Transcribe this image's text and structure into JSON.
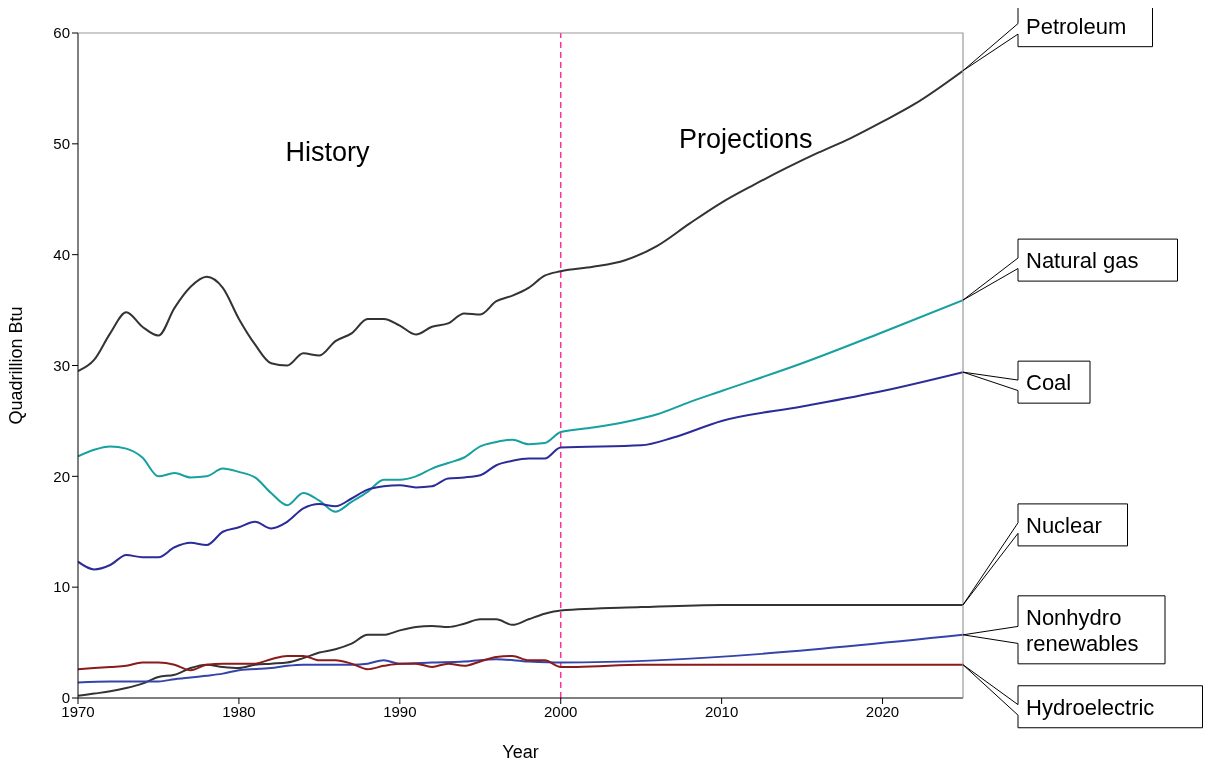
{
  "chart_data": {
    "type": "line",
    "xlabel": "Year",
    "ylabel": "Quadrillion Btu",
    "xlim": [
      1970,
      2025
    ],
    "xticks": [
      1970,
      1980,
      1990,
      2000,
      2010,
      2020
    ],
    "ylim": [
      0,
      60
    ],
    "yticks": [
      0,
      10,
      20,
      30,
      40,
      50,
      60
    ],
    "grid": false,
    "legend": false,
    "marker": "none",
    "line_style": "solid",
    "annotations": [
      "History",
      "Projections"
    ],
    "ref_lines": [
      {
        "axis": "x",
        "value": 2000,
        "color": "#ff3399",
        "line_style": "dashed"
      }
    ],
    "series": [
      {
        "name": "Petroleum",
        "color": "#333333",
        "x": [
          1970,
          1971,
          1972,
          1973,
          1974,
          1975,
          1976,
          1977,
          1978,
          1979,
          1980,
          1981,
          1982,
          1983,
          1984,
          1985,
          1986,
          1987,
          1988,
          1989,
          1990,
          1991,
          1992,
          1993,
          1994,
          1995,
          1996,
          1997,
          1998,
          1999,
          2000,
          2002,
          2004,
          2006,
          2008,
          2010,
          2012,
          2014,
          2016,
          2018,
          2020,
          2022,
          2025
        ],
        "values": [
          29.5,
          30.5,
          32.9,
          34.8,
          33.5,
          32.7,
          35.2,
          37.1,
          38.0,
          37.0,
          34.2,
          31.9,
          30.2,
          30.0,
          31.1,
          30.9,
          32.2,
          32.9,
          34.2,
          34.2,
          33.6,
          32.8,
          33.5,
          33.8,
          34.7,
          34.6,
          35.8,
          36.3,
          37.0,
          38.1,
          38.5,
          38.9,
          39.5,
          40.8,
          42.8,
          44.7,
          46.3,
          47.8,
          49.2,
          50.5,
          52.0,
          53.6,
          56.6
        ]
      },
      {
        "name": "Natural gas",
        "color": "#16a0a0",
        "x": [
          1970,
          1971,
          1972,
          1973,
          1974,
          1975,
          1976,
          1977,
          1978,
          1979,
          1980,
          1981,
          1982,
          1983,
          1984,
          1985,
          1986,
          1987,
          1988,
          1989,
          1990,
          1991,
          1992,
          1993,
          1994,
          1995,
          1996,
          1997,
          1998,
          1999,
          2000,
          2002,
          2004,
          2006,
          2008,
          2010,
          2015,
          2020,
          2025
        ],
        "values": [
          21.8,
          22.4,
          22.7,
          22.5,
          21.7,
          20.0,
          20.3,
          19.9,
          20.0,
          20.7,
          20.4,
          19.9,
          18.5,
          17.4,
          18.5,
          17.8,
          16.8,
          17.7,
          18.6,
          19.7,
          19.7,
          20.0,
          20.7,
          21.2,
          21.7,
          22.7,
          23.1,
          23.3,
          22.9,
          23.0,
          24.0,
          24.4,
          24.9,
          25.6,
          26.7,
          27.7,
          30.2,
          33.0,
          35.9
        ]
      },
      {
        "name": "Coal",
        "color": "#2b2b99",
        "x": [
          1970,
          1971,
          1972,
          1973,
          1974,
          1975,
          1976,
          1977,
          1978,
          1979,
          1980,
          1981,
          1982,
          1983,
          1984,
          1985,
          1986,
          1987,
          1988,
          1989,
          1990,
          1991,
          1992,
          1993,
          1994,
          1995,
          1996,
          1997,
          1998,
          1999,
          2000,
          2005,
          2007,
          2010,
          2015,
          2020,
          2025
        ],
        "values": [
          12.3,
          11.6,
          12.0,
          12.9,
          12.7,
          12.7,
          13.6,
          14.0,
          13.8,
          15.0,
          15.4,
          15.9,
          15.3,
          15.9,
          17.1,
          17.5,
          17.3,
          18.0,
          18.8,
          19.1,
          19.2,
          19.0,
          19.1,
          19.8,
          19.9,
          20.1,
          21.0,
          21.4,
          21.6,
          21.6,
          22.6,
          22.8,
          23.5,
          25.0,
          26.3,
          27.7,
          29.4
        ]
      },
      {
        "name": "Nuclear",
        "color": "#333333",
        "x": [
          1970,
          1971,
          1972,
          1973,
          1974,
          1975,
          1976,
          1977,
          1978,
          1979,
          1980,
          1981,
          1982,
          1983,
          1984,
          1985,
          1986,
          1987,
          1988,
          1989,
          1990,
          1991,
          1992,
          1993,
          1994,
          1995,
          1996,
          1997,
          1998,
          1999,
          2000,
          2005,
          2010,
          2025
        ],
        "values": [
          0.2,
          0.4,
          0.6,
          0.9,
          1.3,
          1.9,
          2.1,
          2.7,
          3.0,
          2.8,
          2.7,
          3.0,
          3.1,
          3.2,
          3.6,
          4.1,
          4.4,
          4.9,
          5.7,
          5.7,
          6.1,
          6.4,
          6.5,
          6.4,
          6.7,
          7.1,
          7.1,
          6.6,
          7.1,
          7.6,
          7.9,
          8.2,
          8.4,
          8.4
        ]
      },
      {
        "name": "Nonhydro renewables",
        "color": "#3344aa",
        "x": [
          1970,
          1972,
          1975,
          1976,
          1978,
          1979,
          1980,
          1982,
          1983,
          1984,
          1987,
          1988,
          1989,
          1990,
          1992,
          1994,
          1996,
          1998,
          2000,
          2025
        ],
        "values": [
          1.4,
          1.5,
          1.5,
          1.7,
          2.0,
          2.2,
          2.5,
          2.7,
          2.9,
          3.0,
          3.0,
          3.1,
          3.4,
          3.1,
          3.2,
          3.3,
          3.5,
          3.3,
          3.2,
          5.7
        ]
      },
      {
        "name": "Hydroelectric",
        "color": "#8b1a1a",
        "x": [
          1970,
          1972,
          1973,
          1974,
          1975,
          1976,
          1977,
          1978,
          1979,
          1980,
          1981,
          1982,
          1983,
          1984,
          1985,
          1986,
          1987,
          1988,
          1989,
          1990,
          1991,
          1992,
          1993,
          1994,
          1995,
          1996,
          1997,
          1998,
          1999,
          2000,
          2001,
          2005,
          2025
        ],
        "values": [
          2.6,
          2.8,
          2.9,
          3.2,
          3.2,
          3.0,
          2.5,
          3.0,
          3.1,
          3.1,
          3.1,
          3.5,
          3.8,
          3.8,
          3.4,
          3.4,
          3.1,
          2.6,
          2.9,
          3.1,
          3.1,
          2.8,
          3.1,
          2.9,
          3.3,
          3.7,
          3.8,
          3.4,
          3.4,
          2.8,
          2.8,
          3.0,
          3.0
        ]
      }
    ]
  }
}
